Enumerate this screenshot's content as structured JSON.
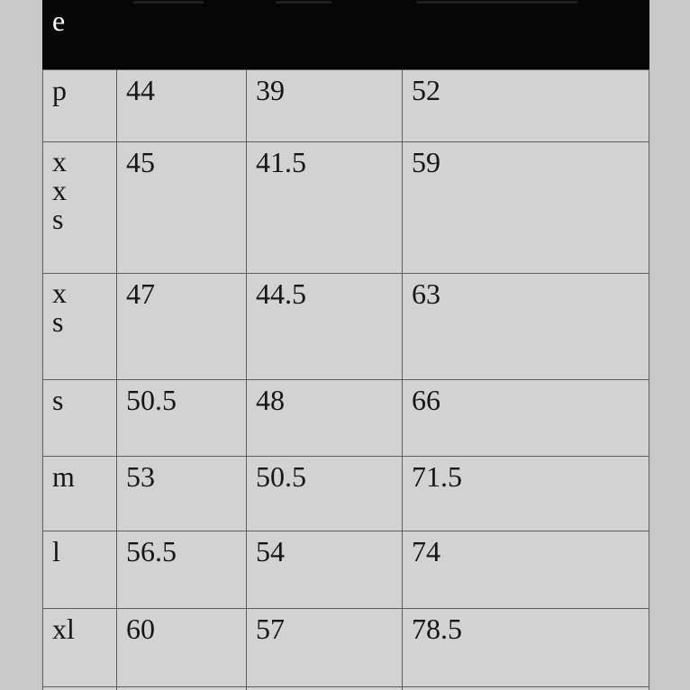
{
  "colors": {
    "page_bg": "#c9c9c9",
    "cell_bg": "#d2d2d2",
    "border": "#5e5e5e",
    "header_bg": "#060606",
    "header_text": "#ffffff",
    "text": "#161616"
  },
  "table": {
    "header": {
      "partial_label": "e"
    },
    "rows": [
      {
        "size": "p",
        "values": [
          "44",
          "39",
          "52"
        ]
      },
      {
        "size": "xxs",
        "values": [
          "45",
          "41.5",
          "59"
        ]
      },
      {
        "size": "xs",
        "values": [
          "47",
          "44.5",
          "63"
        ]
      },
      {
        "size": "s",
        "values": [
          "50.5",
          "48",
          "66"
        ]
      },
      {
        "size": "m",
        "values": [
          "53",
          "50.5",
          "71.5"
        ]
      },
      {
        "size": "l",
        "values": [
          "56.5",
          "54",
          "74"
        ]
      },
      {
        "size": "xl",
        "values": [
          "60",
          "57",
          "78.5"
        ]
      }
    ]
  }
}
